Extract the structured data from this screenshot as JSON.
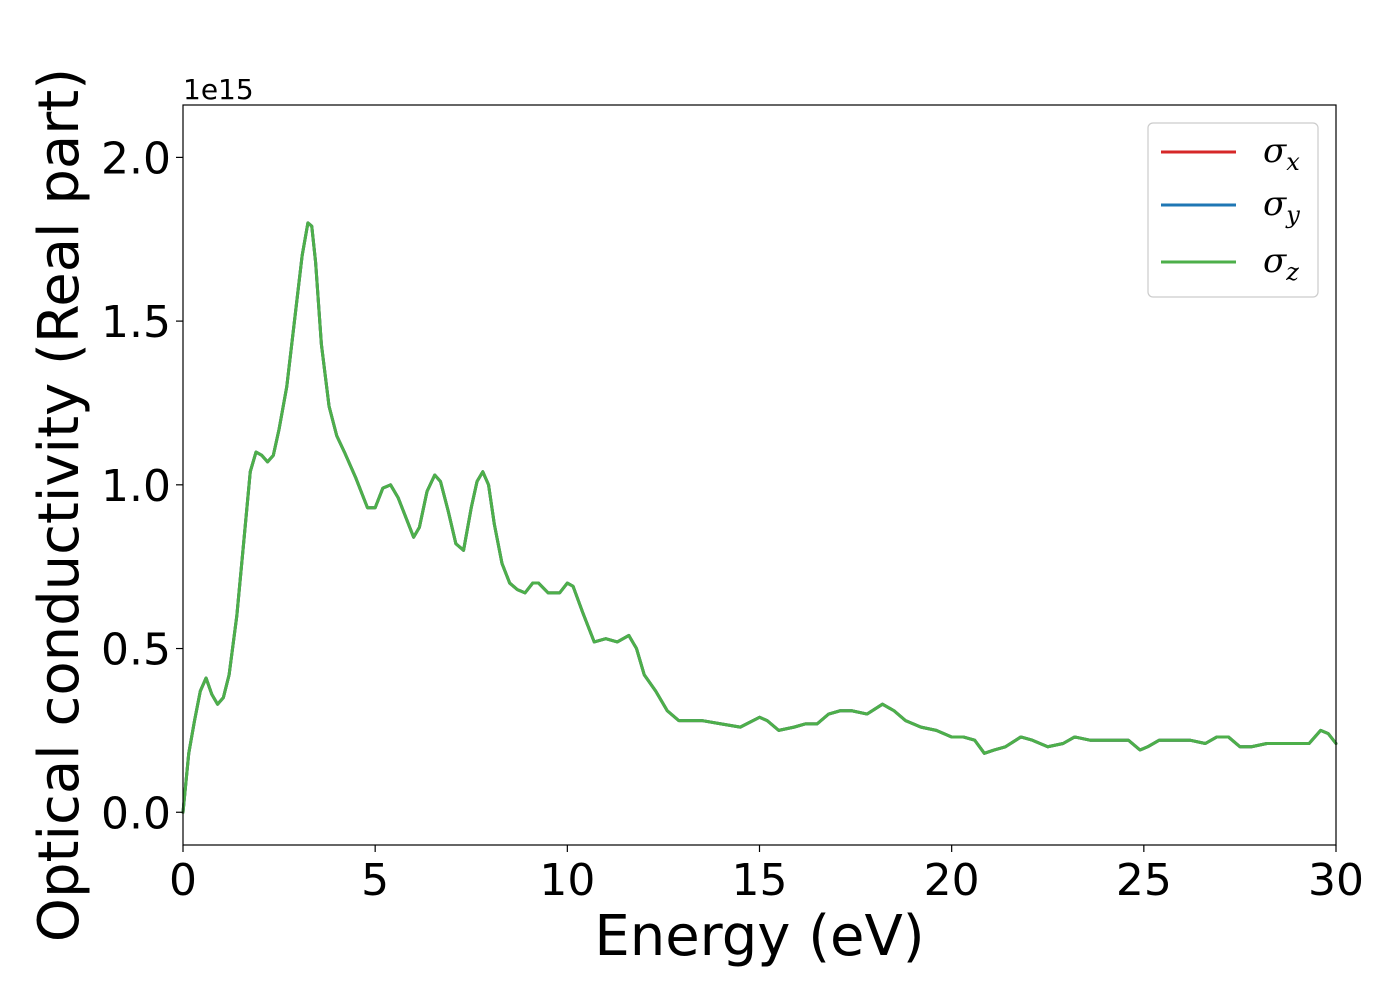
{
  "chart_data": {
    "type": "line",
    "xlabel": "Energy (eV)",
    "ylabel": "Optical conductivity (Real part)",
    "y_offset_label": "1e15",
    "xlim": [
      0,
      30
    ],
    "ylim": [
      -0.1,
      2.16
    ],
    "y_scale_factor": "1e15",
    "x_ticks": [
      0,
      5,
      10,
      15,
      20,
      25,
      30
    ],
    "x_tick_labels": [
      "0",
      "5",
      "10",
      "15",
      "20",
      "25",
      "30"
    ],
    "y_ticks": [
      0.0,
      0.5,
      1.0,
      1.5,
      2.0
    ],
    "y_tick_labels": [
      "0.0",
      "0.5",
      "1.0",
      "1.5",
      "2.0"
    ],
    "grid": false,
    "legend_position": "top-right",
    "series": [
      {
        "name": "σ",
        "subscript": "x",
        "color": "#d62728"
      },
      {
        "name": "σ",
        "subscript": "y",
        "color": "#1f77b4"
      },
      {
        "name": "σ",
        "subscript": "z",
        "color": "#4daf4a"
      }
    ],
    "x": [
      0,
      0.15,
      0.3,
      0.45,
      0.6,
      0.75,
      0.9,
      1.05,
      1.2,
      1.4,
      1.6,
      1.75,
      1.9,
      2.05,
      2.2,
      2.35,
      2.5,
      2.7,
      2.9,
      3.1,
      3.25,
      3.35,
      3.45,
      3.6,
      3.8,
      4.0,
      4.2,
      4.5,
      4.8,
      5.0,
      5.2,
      5.4,
      5.6,
      5.8,
      6.0,
      6.15,
      6.35,
      6.55,
      6.7,
      6.9,
      7.1,
      7.3,
      7.5,
      7.65,
      7.8,
      7.95,
      8.1,
      8.3,
      8.5,
      8.7,
      8.9,
      9.1,
      9.25,
      9.5,
      9.8,
      10.0,
      10.15,
      10.4,
      10.7,
      11.0,
      11.3,
      11.6,
      11.8,
      12.0,
      12.3,
      12.6,
      12.9,
      13.2,
      13.5,
      14.0,
      14.5,
      15.0,
      15.2,
      15.5,
      15.9,
      16.2,
      16.5,
      16.8,
      17.1,
      17.4,
      17.8,
      18.2,
      18.5,
      18.8,
      19.2,
      19.6,
      20.0,
      20.3,
      20.6,
      20.85,
      21.1,
      21.4,
      21.8,
      22.1,
      22.5,
      22.9,
      23.2,
      23.6,
      24.0,
      24.4,
      24.6,
      24.9,
      25.1,
      25.4,
      25.8,
      26.2,
      26.6,
      26.9,
      27.2,
      27.5,
      27.8,
      28.2,
      28.6,
      29.0,
      29.3,
      29.6,
      29.8,
      30.0
    ],
    "y": [
      0.0,
      0.18,
      0.28,
      0.37,
      0.41,
      0.36,
      0.33,
      0.35,
      0.42,
      0.6,
      0.85,
      1.04,
      1.1,
      1.09,
      1.07,
      1.09,
      1.17,
      1.3,
      1.5,
      1.7,
      1.8,
      1.79,
      1.68,
      1.43,
      1.24,
      1.15,
      1.1,
      1.02,
      0.93,
      0.93,
      0.99,
      1.0,
      0.96,
      0.9,
      0.84,
      0.87,
      0.98,
      1.03,
      1.01,
      0.92,
      0.82,
      0.8,
      0.93,
      1.01,
      1.04,
      1.0,
      0.88,
      0.76,
      0.7,
      0.68,
      0.67,
      0.7,
      0.7,
      0.67,
      0.67,
      0.7,
      0.69,
      0.61,
      0.52,
      0.53,
      0.52,
      0.54,
      0.5,
      0.42,
      0.37,
      0.31,
      0.28,
      0.28,
      0.28,
      0.27,
      0.26,
      0.29,
      0.28,
      0.25,
      0.26,
      0.27,
      0.27,
      0.3,
      0.31,
      0.31,
      0.3,
      0.33,
      0.31,
      0.28,
      0.26,
      0.25,
      0.23,
      0.23,
      0.22,
      0.18,
      0.19,
      0.2,
      0.23,
      0.22,
      0.2,
      0.21,
      0.23,
      0.22,
      0.22,
      0.22,
      0.22,
      0.19,
      0.2,
      0.22,
      0.22,
      0.22,
      0.21,
      0.23,
      0.23,
      0.2,
      0.2,
      0.21,
      0.21,
      0.21,
      0.21,
      0.25,
      0.24,
      0.21
    ]
  }
}
